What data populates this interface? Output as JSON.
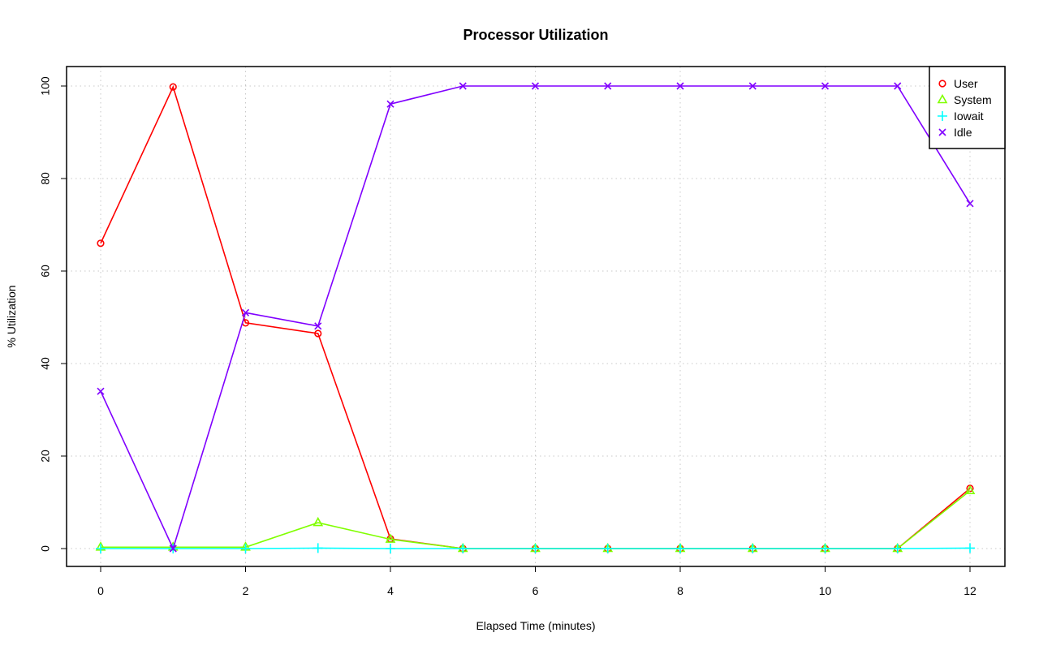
{
  "chart_data": {
    "type": "line",
    "title": "Processor Utilization",
    "xlabel": "Elapsed Time (minutes)",
    "ylabel": "% Utilization",
    "xlim": [
      0,
      12
    ],
    "ylim": [
      0,
      100
    ],
    "xticks": [
      0,
      2,
      4,
      6,
      8,
      10,
      12
    ],
    "yticks": [
      0,
      20,
      40,
      60,
      80,
      100
    ],
    "grid": true,
    "legend_position": "top-right",
    "x": [
      0,
      1,
      2,
      3,
      4,
      5,
      6,
      7,
      8,
      9,
      10,
      11,
      12
    ],
    "series": [
      {
        "name": "User",
        "color": "#ff0000",
        "marker": "circle",
        "values": [
          66.0,
          99.8,
          48.8,
          46.5,
          2.1,
          0,
          0,
          0,
          0,
          0,
          0,
          0,
          13.0
        ]
      },
      {
        "name": "System",
        "color": "#80ff00",
        "marker": "triangle",
        "values": [
          0.3,
          0.3,
          0.3,
          5.6,
          2.0,
          0,
          0,
          0,
          0,
          0,
          0,
          0,
          12.5
        ]
      },
      {
        "name": "Iowait",
        "color": "#00ffff",
        "marker": "plus",
        "values": [
          0,
          0,
          0,
          0.1,
          0,
          0,
          0,
          0,
          0,
          0,
          0,
          0,
          0.1
        ]
      },
      {
        "name": "Idle",
        "color": "#8000ff",
        "marker": "cross",
        "values": [
          34.0,
          0,
          51.0,
          48.1,
          96.1,
          100,
          100,
          100,
          100,
          100,
          100,
          100,
          74.6
        ]
      }
    ]
  }
}
